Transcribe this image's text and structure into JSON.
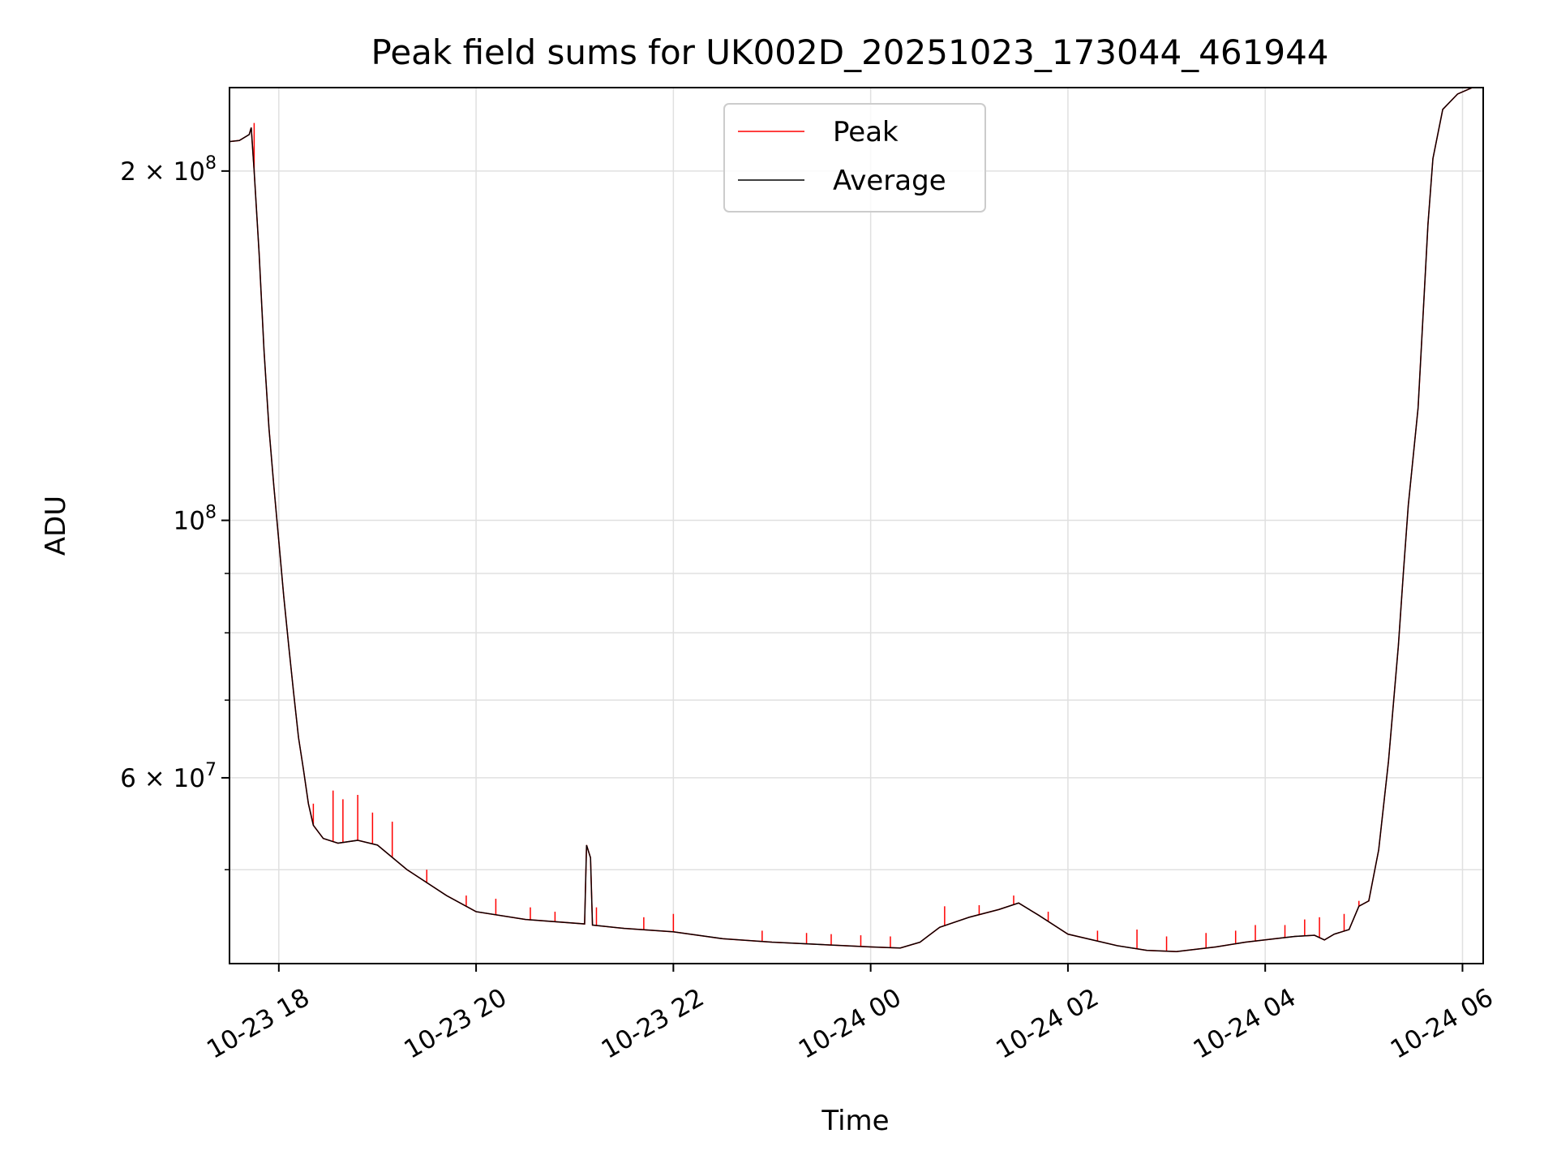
{
  "chart_data": {
    "type": "line",
    "title": "Peak field sums for UK002D_20251023_173044_461944",
    "xlabel": "Time",
    "ylabel": "ADU",
    "yscale": "log",
    "grid": true,
    "legend_position": "upper-center",
    "x_unit": "hours since 2025-10-23 17:30",
    "xlim": [
      0,
      12.71
    ],
    "ylim": [
      41500000,
      236000000
    ],
    "x_ticks": [
      {
        "value": 0.5,
        "label": "10-23 18"
      },
      {
        "value": 2.5,
        "label": "10-23 20"
      },
      {
        "value": 4.5,
        "label": "10-23 22"
      },
      {
        "value": 6.5,
        "label": "10-24 00"
      },
      {
        "value": 8.5,
        "label": "10-24 02"
      },
      {
        "value": 10.5,
        "label": "10-24 04"
      },
      {
        "value": 12.5,
        "label": "10-24 06"
      }
    ],
    "y_major_ticks": [
      {
        "value": 60000000,
        "base": "6 × 10",
        "exp": "7"
      },
      {
        "value": 100000000,
        "base": "10",
        "exp": "8"
      },
      {
        "value": 200000000,
        "base": "2 × 10",
        "exp": "8"
      }
    ],
    "y_minor_gridlines": [
      50000000,
      70000000,
      80000000,
      90000000
    ],
    "series": [
      {
        "name": "Average",
        "color": "#000000",
        "points": [
          [
            0.0,
            212000000
          ],
          [
            0.1,
            212500000
          ],
          [
            0.2,
            215000000
          ],
          [
            0.22,
            218000000
          ],
          [
            0.25,
            200000000
          ],
          [
            0.3,
            170000000
          ],
          [
            0.35,
            140000000
          ],
          [
            0.4,
            120000000
          ],
          [
            0.45,
            107000000
          ],
          [
            0.5,
            96000000
          ],
          [
            0.55,
            86000000
          ],
          [
            0.6,
            78000000
          ],
          [
            0.65,
            71000000
          ],
          [
            0.7,
            65000000
          ],
          [
            0.75,
            61000000
          ],
          [
            0.8,
            57000000
          ],
          [
            0.85,
            54600000
          ],
          [
            0.95,
            53200000
          ],
          [
            1.1,
            52700000
          ],
          [
            1.3,
            53000000
          ],
          [
            1.5,
            52500000
          ],
          [
            1.8,
            50000000
          ],
          [
            2.2,
            47500000
          ],
          [
            2.5,
            46000000
          ],
          [
            3.0,
            45300000
          ],
          [
            3.6,
            44900000
          ],
          [
            3.62,
            52500000
          ],
          [
            3.66,
            51200000
          ],
          [
            3.68,
            44800000
          ],
          [
            4.0,
            44500000
          ],
          [
            4.5,
            44200000
          ],
          [
            5.0,
            43600000
          ],
          [
            5.5,
            43300000
          ],
          [
            6.0,
            43100000
          ],
          [
            6.5,
            42900000
          ],
          [
            6.8,
            42800000
          ],
          [
            7.0,
            43300000
          ],
          [
            7.2,
            44600000
          ],
          [
            7.5,
            45500000
          ],
          [
            7.8,
            46200000
          ],
          [
            8.0,
            46800000
          ],
          [
            8.2,
            45700000
          ],
          [
            8.5,
            44000000
          ],
          [
            9.0,
            43000000
          ],
          [
            9.3,
            42600000
          ],
          [
            9.6,
            42500000
          ],
          [
            10.0,
            42900000
          ],
          [
            10.3,
            43300000
          ],
          [
            10.6,
            43600000
          ],
          [
            10.8,
            43800000
          ],
          [
            11.0,
            43900000
          ],
          [
            11.1,
            43500000
          ],
          [
            11.2,
            44000000
          ],
          [
            11.35,
            44400000
          ],
          [
            11.45,
            46500000
          ],
          [
            11.55,
            47000000
          ],
          [
            11.65,
            52000000
          ],
          [
            11.75,
            62000000
          ],
          [
            11.85,
            78000000
          ],
          [
            11.9,
            90000000
          ],
          [
            11.95,
            103000000
          ],
          [
            12.05,
            125000000
          ],
          [
            12.1,
            150000000
          ],
          [
            12.15,
            180000000
          ],
          [
            12.2,
            205000000
          ],
          [
            12.3,
            226000000
          ],
          [
            12.45,
            233000000
          ],
          [
            12.6,
            236000000
          ]
        ]
      },
      {
        "name": "Peak",
        "color": "#ff0000",
        "spikes": [
          [
            0.25,
            220000000
          ],
          [
            0.85,
            57000000
          ],
          [
            1.05,
            58500000
          ],
          [
            1.15,
            57500000
          ],
          [
            1.3,
            58000000
          ],
          [
            1.45,
            56000000
          ],
          [
            1.65,
            55000000
          ],
          [
            2.0,
            50000000
          ],
          [
            2.4,
            47500000
          ],
          [
            2.7,
            47200000
          ],
          [
            3.05,
            46400000
          ],
          [
            3.3,
            46000000
          ],
          [
            3.72,
            46400000
          ],
          [
            4.2,
            45500000
          ],
          [
            4.5,
            45800000
          ],
          [
            5.4,
            44300000
          ],
          [
            5.85,
            44100000
          ],
          [
            6.1,
            44000000
          ],
          [
            6.4,
            43900000
          ],
          [
            6.7,
            43800000
          ],
          [
            7.25,
            46500000
          ],
          [
            7.6,
            46600000
          ],
          [
            7.95,
            47500000
          ],
          [
            8.3,
            46000000
          ],
          [
            8.8,
            44300000
          ],
          [
            9.2,
            44400000
          ],
          [
            9.5,
            43800000
          ],
          [
            9.9,
            44100000
          ],
          [
            10.2,
            44300000
          ],
          [
            10.4,
            44800000
          ],
          [
            10.7,
            44800000
          ],
          [
            10.9,
            45300000
          ],
          [
            11.05,
            45500000
          ],
          [
            11.3,
            45800000
          ],
          [
            11.45,
            47000000
          ],
          [
            11.55,
            47100000
          ]
        ]
      }
    ]
  }
}
